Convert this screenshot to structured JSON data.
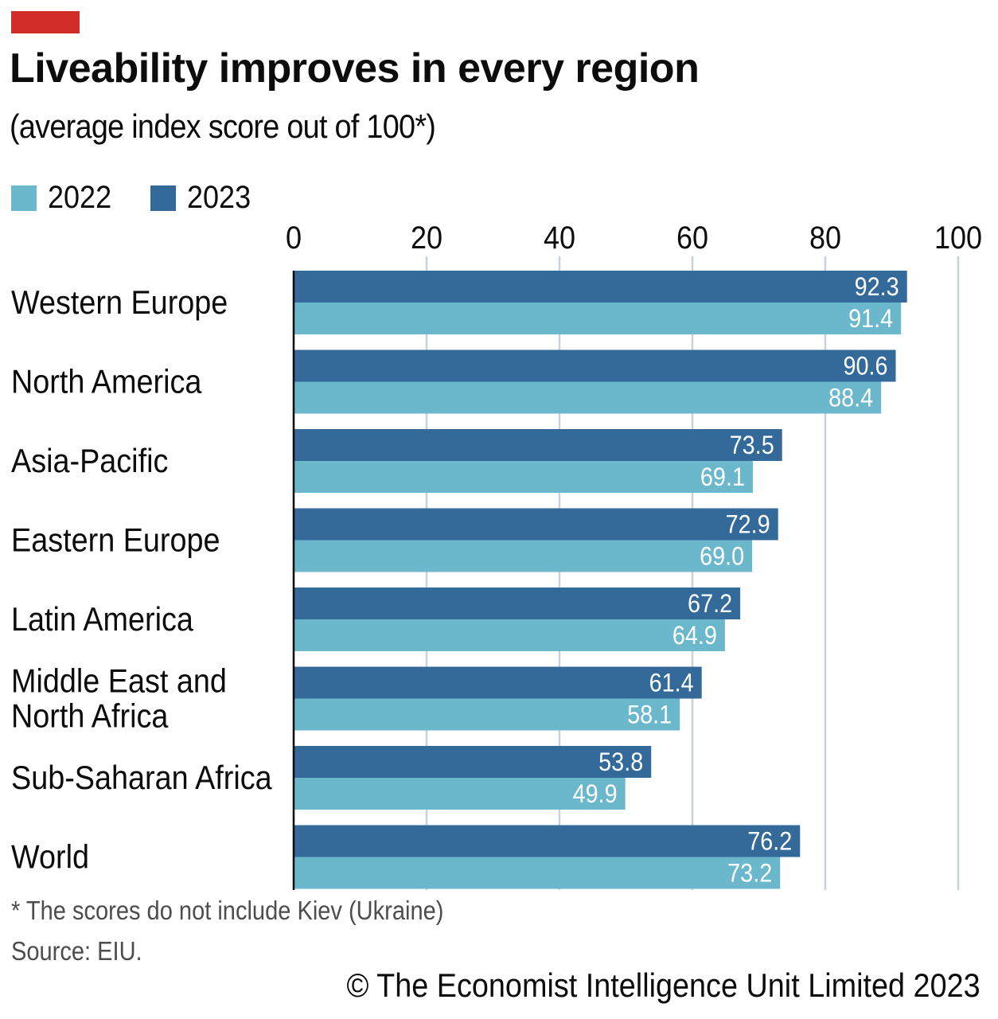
{
  "header": {
    "title": "Liveability improves in every region",
    "subtitle": "(average index score out of 100*)"
  },
  "colors": {
    "accent_tag": "#d12e2a",
    "series_2022": "#6bb8cc",
    "series_2023": "#336a9a",
    "gridline": "#c8d2da",
    "axis": "#0c0c0c"
  },
  "legend": [
    {
      "label": "2022",
      "color": "#6bb8cc"
    },
    {
      "label": "2023",
      "color": "#336a9a"
    }
  ],
  "footer": {
    "footnote": "* The scores do not include Kiev (Ukraine)",
    "source": "Source: EIU.",
    "copyright": "© The Economist Intelligence Unit Limited 2023"
  },
  "chart_data": {
    "type": "bar",
    "orientation": "horizontal",
    "title": "Liveability improves in every region",
    "subtitle": "(average index score out of 100*)",
    "xlabel": "",
    "ylabel": "",
    "xlim": [
      0,
      100
    ],
    "x_ticks": [
      0,
      20,
      40,
      60,
      80,
      100
    ],
    "grid": true,
    "legend_position": "top-left",
    "categories": [
      "Western Europe",
      "North America",
      "Asia-Pacific",
      "Eastern Europe",
      "Latin America",
      "Middle East and North Africa",
      "Sub-Saharan Africa",
      "World"
    ],
    "category_lines": [
      [
        "Western Europe"
      ],
      [
        "North America"
      ],
      [
        "Asia-Pacific"
      ],
      [
        "Eastern Europe"
      ],
      [
        "Latin America"
      ],
      [
        "Middle East and",
        "North Africa"
      ],
      [
        "Sub-Saharan Africa"
      ],
      [
        "World"
      ]
    ],
    "series": [
      {
        "name": "2023",
        "color": "#336a9a",
        "values": [
          92.3,
          90.6,
          73.5,
          72.9,
          67.2,
          61.4,
          53.8,
          76.2
        ],
        "labels": [
          "92.3",
          "90.6",
          "73.5",
          "72.9",
          "67.2",
          "61.4",
          "53.8",
          "76.2"
        ]
      },
      {
        "name": "2022",
        "color": "#6bb8cc",
        "values": [
          91.4,
          88.4,
          69.1,
          69.0,
          64.9,
          58.1,
          49.9,
          73.2
        ],
        "labels": [
          "91.4",
          "88.4",
          "69.1",
          "69.0",
          "64.9",
          "58.1",
          "49.9",
          "73.2"
        ]
      }
    ],
    "annotations": [
      "* The scores do not include Kiev (Ukraine)",
      "Source: EIU."
    ]
  }
}
